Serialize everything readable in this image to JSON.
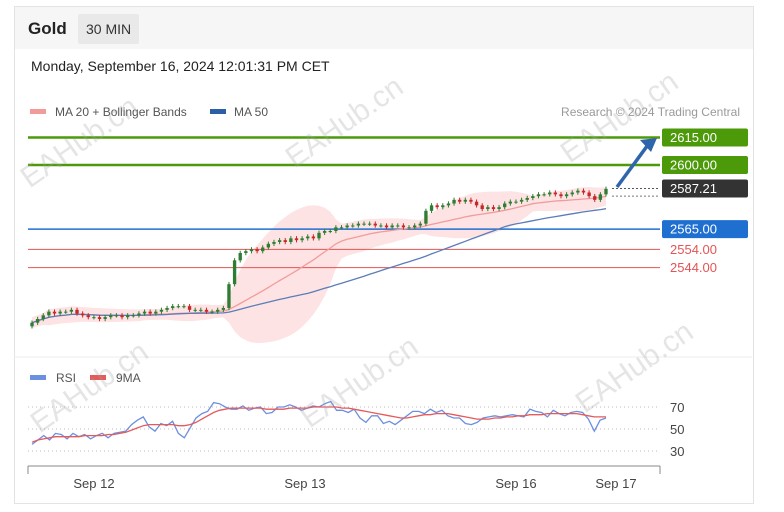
{
  "header": {
    "symbol": "Gold",
    "timeframe": "30 MIN",
    "datetime": "Monday, September 16, 2024 12:01:31 PM CET"
  },
  "attribution": "Research © 2024 Trading Central",
  "watermark": "EAHub.cn",
  "colors": {
    "bullish": "#2e7d32",
    "bearish": "#c62828",
    "ma20": "#f29b9b",
    "bollinger_fill": "#fde3e3",
    "ma50": "#5b7db8",
    "resistance": "#4c9a0a",
    "pivot": "#1f6fd1",
    "support": "#e25555",
    "last_price": "#333333",
    "arrow": "#2f65ad",
    "rsi": "#6d8fe0",
    "rsi_ma": "#e55a5a"
  },
  "chart_data": [
    {
      "type": "candlestick",
      "title": "Gold",
      "ylim": [
        2525,
        2625
      ],
      "x_ticks": [
        "Sep 12",
        "Sep 13",
        "Sep 16",
        "Sep 17"
      ],
      "legend": [
        {
          "name": "MA 20 + Bollinger Bands",
          "color": "#f29b9b"
        },
        {
          "name": "MA 50",
          "color": "#2d5fa8"
        }
      ],
      "levels": [
        {
          "label": "2615.00",
          "value": 2615,
          "kind": "resistance"
        },
        {
          "label": "2600.00",
          "value": 2600,
          "kind": "resistance"
        },
        {
          "label": "2587.21",
          "value": 2587.21,
          "kind": "last"
        },
        {
          "label": "2565.00",
          "value": 2565,
          "kind": "pivot"
        },
        {
          "label": "2554.00",
          "value": 2554,
          "kind": "support"
        },
        {
          "label": "2544.00",
          "value": 2544,
          "kind": "support"
        }
      ],
      "close_prices": [
        2514,
        2516,
        2518,
        2520,
        2519,
        2520,
        2520,
        2521,
        2519,
        2518,
        2517,
        2517,
        2516,
        2517,
        2518,
        2518,
        2517,
        2518,
        2518,
        2519,
        2520,
        2519,
        2520,
        2521,
        2522,
        2523,
        2523,
        2523,
        2521,
        2521,
        2521,
        2520,
        2520,
        2521,
        2522,
        2535,
        2548,
        2552,
        2553,
        2554,
        2553,
        2555,
        2557,
        2558,
        2559,
        2558,
        2560,
        2559,
        2560,
        2561,
        2560,
        2563,
        2564,
        2564,
        2566,
        2566,
        2567,
        2567,
        2568,
        2568,
        2568,
        2567,
        2567,
        2566,
        2567,
        2567,
        2566,
        2566,
        2567,
        2568,
        2575,
        2578,
        2577,
        2578,
        2579,
        2581,
        2580,
        2581,
        2580,
        2578,
        2576,
        2577,
        2576,
        2577,
        2579,
        2580,
        2580,
        2581,
        2582,
        2583,
        2584,
        2584,
        2585,
        2584,
        2583,
        2584,
        2585,
        2586,
        2585,
        2583,
        2581,
        2584,
        2587
      ]
    },
    {
      "type": "line",
      "title": "RSI",
      "ylim": [
        25,
        80
      ],
      "y_ticks": [
        70,
        50,
        30
      ],
      "x_ticks": [
        "Sep 12",
        "Sep 13",
        "Sep 16",
        "Sep 17"
      ],
      "series": [
        {
          "name": "RSI",
          "color": "#6d8fe0",
          "values": [
            36,
            40,
            44,
            40,
            46,
            45,
            41,
            46,
            43,
            45,
            41,
            44,
            46,
            42,
            46,
            47,
            48,
            54,
            58,
            61,
            52,
            48,
            55,
            53,
            57,
            46,
            42,
            51,
            60,
            64,
            66,
            74,
            73,
            70,
            68,
            68,
            71,
            67,
            69,
            70,
            64,
            65,
            70,
            70,
            72,
            70,
            67,
            69,
            71,
            70,
            73,
            75,
            67,
            67,
            65,
            68,
            60,
            56,
            62,
            62,
            55,
            57,
            54,
            58,
            62,
            66,
            66,
            64,
            68,
            65,
            67,
            62,
            60,
            60,
            55,
            54,
            56,
            60,
            61,
            62,
            61,
            62,
            63,
            62,
            61,
            68,
            66,
            65,
            61,
            67,
            64,
            62,
            65,
            66,
            65,
            59,
            48,
            58,
            60
          ]
        },
        {
          "name": "9MA",
          "color": "#e55a5a",
          "values": [
            38,
            40,
            41,
            42,
            43,
            43,
            43,
            43,
            43,
            44,
            44,
            44,
            44,
            45,
            45,
            46,
            47,
            49,
            51,
            53,
            54,
            54,
            54,
            54,
            54,
            53,
            53,
            54,
            56,
            59,
            62,
            65,
            67,
            68,
            69,
            69,
            69,
            69,
            69,
            69,
            68,
            68,
            68,
            68,
            69,
            69,
            69,
            69,
            70,
            70,
            70,
            70,
            70,
            69,
            69,
            68,
            67,
            66,
            65,
            64,
            63,
            62,
            61,
            60,
            60,
            61,
            62,
            63,
            63,
            64,
            64,
            64,
            63,
            62,
            61,
            60,
            59,
            59,
            59,
            60,
            60,
            61,
            61,
            62,
            62,
            63,
            63,
            63,
            64,
            64,
            64,
            64,
            64,
            64,
            63,
            62,
            61,
            61,
            61
          ]
        }
      ]
    }
  ]
}
